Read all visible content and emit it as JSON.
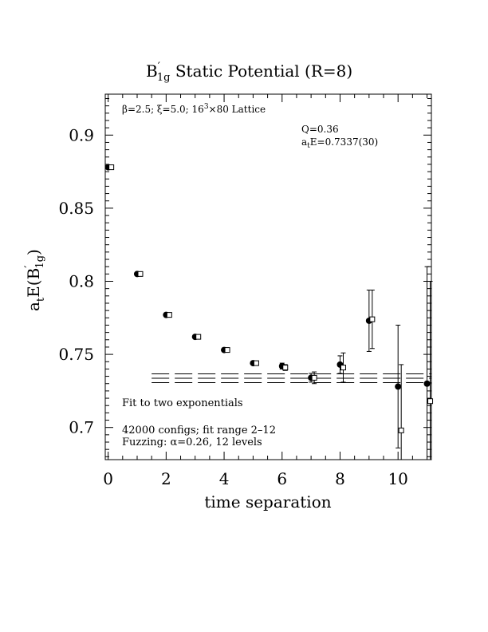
{
  "chart_data": {
    "type": "scatter",
    "title_main": "B",
    "title_prime": "′",
    "title_sub": "1g",
    "title_rest": " Static Potential (R=8)",
    "xlabel": "time separation",
    "ylabel_a": "a",
    "ylabel_t": "t",
    "ylabel_E": "E(B",
    "ylabel_prime": "′",
    "ylabel_sub": "1g",
    "ylabel_close": ")",
    "xlim": [
      -0.1,
      11.15
    ],
    "ylim": [
      0.678,
      0.928
    ],
    "x_ticks": [
      0,
      2,
      4,
      6,
      8,
      10
    ],
    "x_tick_labels": [
      "0",
      "2",
      "4",
      "6",
      "8",
      "10"
    ],
    "y_ticks": [
      0.7,
      0.75,
      0.8,
      0.85,
      0.9
    ],
    "y_tick_labels": [
      "0.7",
      "0.75",
      "0.8",
      "0.85",
      "0.9"
    ],
    "lattice_text_beta": "β=2.5; ξ=5.0; 16",
    "lattice_text_sup": "3",
    "lattice_text_rest": "×80 Lattice",
    "fit_q": "Q=0.36",
    "fit_a": "a",
    "fit_t": "t",
    "fit_E": "E=0.7337(30)",
    "note_fit": "Fit to two exponentials",
    "note_configs": "42000 configs; fit range 2–12",
    "note_fuzzing": "Fuzzing: α=0.26, 12 levels",
    "series": [
      {
        "marker": "filled-circle",
        "points": [
          {
            "x": 0,
            "y": 0.878,
            "err": 0.001
          },
          {
            "x": 1,
            "y": 0.805,
            "err": 0.001
          },
          {
            "x": 2,
            "y": 0.777,
            "err": 0.001
          },
          {
            "x": 3,
            "y": 0.762,
            "err": 0.001
          },
          {
            "x": 4,
            "y": 0.753,
            "err": 0.001
          },
          {
            "x": 5,
            "y": 0.744,
            "err": 0.001
          },
          {
            "x": 6,
            "y": 0.742,
            "err": 0.002
          },
          {
            "x": 7,
            "y": 0.734,
            "err": 0.003
          },
          {
            "x": 8,
            "y": 0.743,
            "err": 0.006
          },
          {
            "x": 9,
            "y": 0.773,
            "err": 0.021
          },
          {
            "x": 10,
            "y": 0.728,
            "err": 0.042
          },
          {
            "x": 11,
            "y": 0.73,
            "err": 0.08
          }
        ]
      },
      {
        "marker": "open-square",
        "points": [
          {
            "x": 0,
            "y": 0.878,
            "err": 0.001
          },
          {
            "x": 1,
            "y": 0.805,
            "err": 0.001
          },
          {
            "x": 2,
            "y": 0.777,
            "err": 0.001
          },
          {
            "x": 3,
            "y": 0.762,
            "err": 0.001
          },
          {
            "x": 4,
            "y": 0.753,
            "err": 0.001
          },
          {
            "x": 5,
            "y": 0.744,
            "err": 0.001
          },
          {
            "x": 6,
            "y": 0.741,
            "err": 0.002
          },
          {
            "x": 7,
            "y": 0.734,
            "err": 0.004
          },
          {
            "x": 8,
            "y": 0.741,
            "err": 0.01
          },
          {
            "x": 9,
            "y": 0.774,
            "err": 0.02
          },
          {
            "x": 10,
            "y": 0.698,
            "err": 0.045
          },
          {
            "x": 11,
            "y": 0.718,
            "err": 0.082
          }
        ]
      }
    ],
    "fit_band": {
      "x": [
        1.5,
        11.15
      ],
      "center": 0.7337,
      "err": 0.003
    }
  }
}
